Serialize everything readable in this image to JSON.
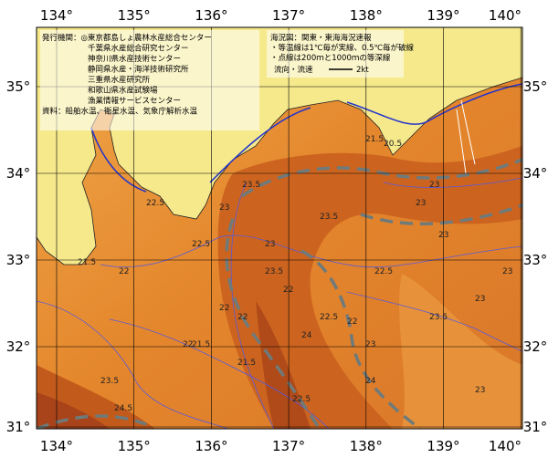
{
  "map": {
    "lon_labels": [
      "134°",
      "135°",
      "136°",
      "137°",
      "138°",
      "139°",
      "140°"
    ],
    "lat_labels": [
      "35°",
      "34°",
      "33°",
      "32°",
      "31°"
    ],
    "issuers": [
      "発行機関：◎東京都島しょ農林水産総合センター",
      "千葉県水産総合研究センター",
      "神奈川県水産技術センター",
      "静岡県水産・海洋技術研究所",
      "三重県水産研究所",
      "和歌山県水産試験場",
      "漁業情報サービスセンター",
      "資料：船舶水温、衛星水温、気象庁解析水温"
    ],
    "notes": [
      "海況図：関東・東海海況速報",
      "・等温線は1℃毎が実線、0.5℃毎が破線",
      "・点線は200ｍと1000ｍの等深線"
    ],
    "flow_legend": "流向・流速",
    "flow_unit": "2kt",
    "contour_labels": [
      "21.5",
      "20.5",
      "23",
      "23",
      "23.5",
      "22.5",
      "23",
      "23.5",
      "22.5",
      "21.5",
      "22",
      "23",
      "22",
      "23.5",
      "24",
      "22",
      "22",
      "21.5",
      "22",
      "22",
      "22.5",
      "23",
      "23",
      "23.5",
      "24",
      "23.5",
      "24.5",
      "21.5",
      "22.5",
      "23",
      "23",
      "22.5",
      "23"
    ]
  }
}
